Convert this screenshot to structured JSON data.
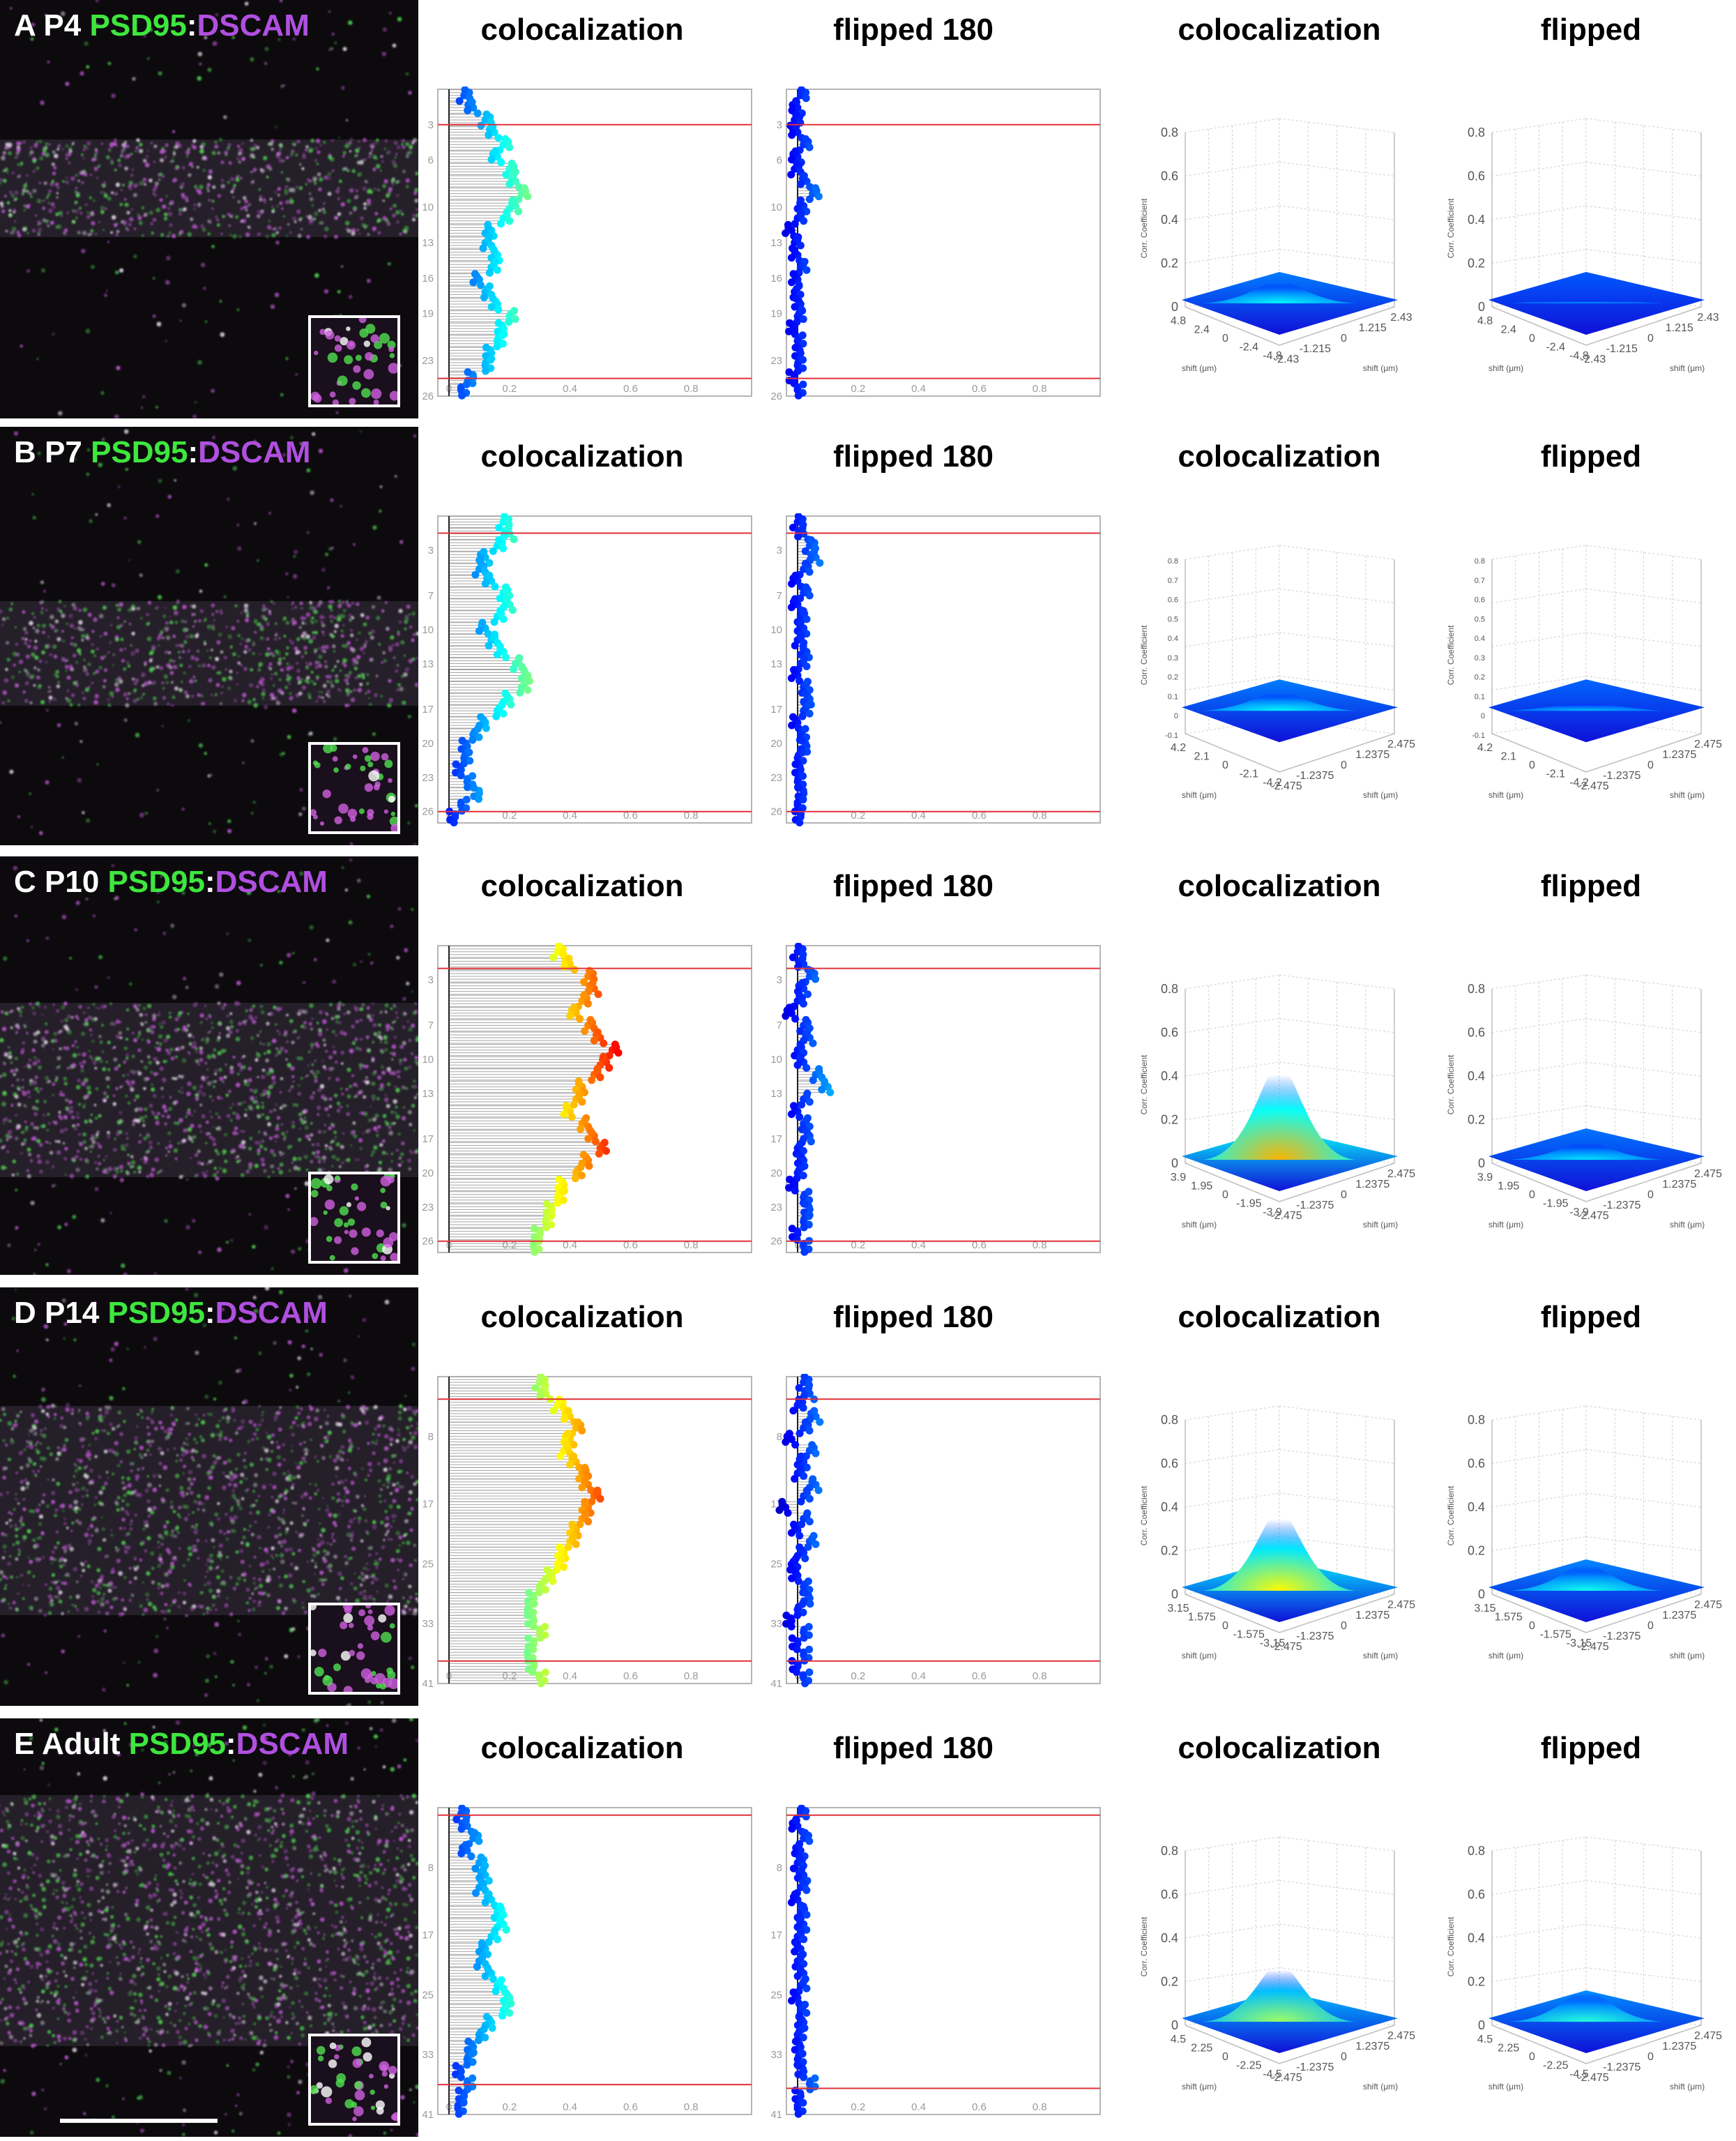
{
  "column_titles": [
    "colocalization",
    "flipped 180",
    "colocalization",
    "flipped"
  ],
  "colors": {
    "green": "#3ee63e",
    "magenta": "#b04fe0",
    "red_line": "#e0303a",
    "stem": "#9a9a9a"
  },
  "panels": [
    {
      "letter": "A",
      "age": "P4",
      "marker1": "PSD95",
      "sep": ":",
      "marker2": "DSCAM",
      "yticks": [
        "3",
        "6",
        "10",
        "13",
        "16",
        "19",
        "23",
        "26"
      ],
      "surf_z": [
        "0.8",
        "0.6",
        "0.4",
        "0.2",
        "0"
      ],
      "surf_z_label": "Corr. Coefficient",
      "surf_x": [
        "4.8",
        "2.4",
        "0",
        "-2.4",
        "-4.8"
      ],
      "surf_y": [
        "-2.43",
        "-1.215",
        "0",
        "1.215",
        "2.43"
      ],
      "surf_x_label": "shift (μm)",
      "surf_y_label": "shift (μm)"
    },
    {
      "letter": "B",
      "age": "P7",
      "marker1": "PSD95",
      "sep": ":",
      "marker2": "DSCAM",
      "yticks": [
        "3",
        "7",
        "10",
        "13",
        "17",
        "20",
        "23",
        "26"
      ],
      "surf_z": [
        "0.8",
        "0.7",
        "0.6",
        "0.5",
        "0.4",
        "0.3",
        "0.2",
        "0.1",
        "0",
        "-0.1"
      ],
      "surf_z_label": "Corr. Coefficient",
      "surf_x": [
        "4.2",
        "2.1",
        "0",
        "-2.1",
        "-4.2"
      ],
      "surf_y": [
        "-2.475",
        "-1.2375",
        "0",
        "1.2375",
        "2.475"
      ],
      "surf_x_label": "shift (μm)",
      "surf_y_label": "shift (μm)"
    },
    {
      "letter": "C",
      "age": "P10",
      "marker1": "PSD95",
      "sep": ":",
      "marker2": "DSCAM",
      "yticks": [
        "3",
        "7",
        "10",
        "13",
        "17",
        "20",
        "23",
        "26"
      ],
      "surf_z": [
        "0.8",
        "0.6",
        "0.4",
        "0.2",
        "0"
      ],
      "surf_z_label": "Corr. Coefficient",
      "surf_x": [
        "3.9",
        "1.95",
        "0",
        "-1.95",
        "-3.9"
      ],
      "surf_y": [
        "-2.475",
        "-1.2375",
        "0",
        "1.2375",
        "2.475"
      ],
      "surf_x_label": "shift (μm)",
      "surf_y_label": "shift (μm)"
    },
    {
      "letter": "D",
      "age": "P14",
      "marker1": "PSD95",
      "sep": ":",
      "marker2": "DSCAM",
      "yticks": [
        "8",
        "17",
        "25",
        "33",
        "41"
      ],
      "surf_z": [
        "0.8",
        "0.6",
        "0.4",
        "0.2",
        "0"
      ],
      "surf_z_label": "Corr. Coefficient",
      "surf_x": [
        "3.15",
        "1.575",
        "0",
        "-1.575",
        "-3.15"
      ],
      "surf_y": [
        "-2.475",
        "-1.2375",
        "0",
        "1.2375",
        "2.475"
      ],
      "surf_x_label": "shift (μm)",
      "surf_y_label": "shift (μm)"
    },
    {
      "letter": "E",
      "age": "Adult",
      "marker1": "PSD95",
      "sep": ":",
      "marker2": "DSCAM",
      "yticks": [
        "8",
        "17",
        "25",
        "33",
        "41"
      ],
      "surf_z": [
        "0.8",
        "0.6",
        "0.4",
        "0.2",
        "0"
      ],
      "surf_z_label": "Corr. Coefficient",
      "surf_x": [
        "4.5",
        "2.25",
        "0",
        "-2.25",
        "-4.5"
      ],
      "surf_y": [
        "-2.475",
        "-1.2375",
        "0",
        "1.2375",
        "2.475"
      ],
      "surf_x_label": "shift (μm)",
      "surf_y_label": "shift (μm)"
    }
  ],
  "chart_data": [
    {
      "type": "scatter",
      "panel": "A",
      "subtype": "lollipop",
      "title": "colocalization",
      "x_ticks": [
        "0",
        "0.2",
        "0.4",
        "0.6",
        "0.8"
      ],
      "xlim": [
        0,
        1.0
      ],
      "ylim": [
        0,
        26
      ],
      "threshold_rows": [
        3,
        24.5
      ],
      "values": [
        0.05,
        0.08,
        0.12,
        0.15,
        0.18,
        0.16,
        0.2,
        0.22,
        0.24,
        0.22,
        0.18,
        0.14,
        0.12,
        0.16,
        0.14,
        0.1,
        0.12,
        0.16,
        0.2,
        0.18,
        0.16,
        0.14,
        0.12,
        0.08,
        0.04
      ]
    },
    {
      "type": "scatter",
      "panel": "A",
      "subtype": "lollipop",
      "title": "flipped 180",
      "x_ticks": [
        "0",
        "0.2",
        "0.4",
        "0.6",
        "0.8"
      ],
      "xlim": [
        0,
        1.0
      ],
      "ylim": [
        0,
        26
      ],
      "threshold_rows": [
        3,
        24.5
      ],
      "values": [
        0.01,
        0.0,
        -0.01,
        0.0,
        0.02,
        0.0,
        -0.01,
        0.03,
        0.05,
        0.02,
        0.0,
        -0.02,
        -0.01,
        0.0,
        0.01,
        0.0,
        -0.01,
        0.01,
        0.0,
        -0.01,
        0.0,
        0.01,
        0.0,
        -0.01,
        0.0
      ]
    },
    {
      "type": "surface",
      "panel": "A",
      "title": "colocalization",
      "peak": 0.12,
      "zlim": [
        0,
        0.8
      ]
    },
    {
      "type": "surface",
      "panel": "A",
      "title": "flipped",
      "peak": 0.03,
      "zlim": [
        0,
        0.8
      ]
    },
    {
      "type": "scatter",
      "panel": "B",
      "subtype": "lollipop",
      "title": "colocalization",
      "x_ticks": [
        "0",
        "0.2",
        "0.4",
        "0.6",
        "0.8"
      ],
      "xlim": [
        0,
        1.0
      ],
      "ylim": [
        0,
        27
      ],
      "threshold_rows": [
        1.5,
        26
      ],
      "values": [
        0.18,
        0.2,
        0.16,
        0.12,
        0.1,
        0.14,
        0.18,
        0.2,
        0.16,
        0.12,
        0.14,
        0.18,
        0.22,
        0.26,
        0.24,
        0.2,
        0.16,
        0.12,
        0.08,
        0.06,
        0.05,
        0.04,
        0.06,
        0.1,
        0.04,
        0.02
      ]
    },
    {
      "type": "scatter",
      "panel": "B",
      "subtype": "lollipop",
      "title": "flipped 180",
      "x_ticks": [
        "0",
        "0.2",
        "0.4",
        "0.6",
        "0.8"
      ],
      "xlim": [
        0,
        1.0
      ],
      "ylim": [
        0,
        27
      ],
      "threshold_rows": [
        1.5,
        26
      ],
      "values": [
        0.0,
        0.02,
        0.04,
        0.06,
        0.02,
        0.0,
        0.02,
        0.0,
        0.01,
        0.02,
        0.0,
        0.03,
        0.01,
        0.0,
        0.02,
        0.04,
        0.02,
        0.0,
        0.01,
        0.03,
        0.0,
        0.01,
        0.0,
        0.02,
        0.0,
        0.01
      ]
    },
    {
      "type": "surface",
      "panel": "B",
      "title": "colocalization",
      "peak": 0.12,
      "zlim": [
        -0.1,
        0.8
      ]
    },
    {
      "type": "surface",
      "panel": "B",
      "title": "flipped",
      "peak": 0.06,
      "zlim": [
        -0.1,
        0.8
      ]
    },
    {
      "type": "scatter",
      "panel": "C",
      "subtype": "lollipop",
      "title": "colocalization",
      "x_ticks": [
        "0",
        "0.2",
        "0.4",
        "0.6",
        "0.8"
      ],
      "xlim": [
        0,
        1.0
      ],
      "ylim": [
        0,
        27
      ],
      "threshold_rows": [
        2,
        26
      ],
      "values": [
        0.36,
        0.4,
        0.46,
        0.48,
        0.44,
        0.42,
        0.46,
        0.5,
        0.54,
        0.52,
        0.48,
        0.44,
        0.42,
        0.4,
        0.44,
        0.48,
        0.5,
        0.46,
        0.42,
        0.38,
        0.36,
        0.34,
        0.32,
        0.3,
        0.28
      ]
    },
    {
      "type": "scatter",
      "panel": "C",
      "subtype": "lollipop",
      "title": "flipped 180",
      "x_ticks": [
        "0",
        "0.2",
        "0.4",
        "0.6",
        "0.8"
      ],
      "xlim": [
        0,
        1.0
      ],
      "ylim": [
        0,
        27
      ],
      "threshold_rows": [
        2,
        26
      ],
      "values": [
        0.0,
        0.02,
        0.04,
        0.02,
        0.0,
        -0.02,
        0.02,
        0.04,
        0.0,
        0.02,
        0.06,
        0.1,
        0.02,
        0.0,
        0.02,
        0.04,
        0.0,
        0.02,
        0.0,
        -0.01,
        0.02,
        0.04,
        0.02,
        0.0,
        0.02
      ]
    },
    {
      "type": "surface",
      "panel": "C",
      "title": "colocalization",
      "peak": 0.45,
      "zlim": [
        0,
        0.8
      ]
    },
    {
      "type": "surface",
      "panel": "C",
      "title": "flipped",
      "peak": 0.1,
      "zlim": [
        0,
        0.8
      ]
    },
    {
      "type": "scatter",
      "panel": "D",
      "subtype": "lollipop",
      "title": "colocalization",
      "x_ticks": [
        "0",
        "0.2",
        "0.4",
        "0.6",
        "0.8"
      ],
      "xlim": [
        0,
        1.0
      ],
      "ylim": [
        0,
        41
      ],
      "threshold_rows": [
        3,
        38
      ],
      "values": [
        0.3,
        0.32,
        0.36,
        0.4,
        0.42,
        0.4,
        0.38,
        0.42,
        0.44,
        0.46,
        0.48,
        0.46,
        0.44,
        0.42,
        0.4,
        0.38,
        0.36,
        0.34,
        0.3,
        0.28,
        0.26,
        0.28,
        0.3,
        0.28,
        0.26,
        0.28,
        0.3
      ]
    },
    {
      "type": "scatter",
      "panel": "D",
      "subtype": "lollipop",
      "title": "flipped 180",
      "x_ticks": [
        "0",
        "0.2",
        "0.4",
        "0.6",
        "0.8"
      ],
      "xlim": [
        0,
        1.0
      ],
      "ylim": [
        0,
        41
      ],
      "threshold_rows": [
        3,
        38
      ],
      "values": [
        0.02,
        0.04,
        0.0,
        0.06,
        0.02,
        -0.02,
        0.04,
        0.02,
        0.0,
        0.06,
        0.02,
        -0.04,
        0.02,
        0.0,
        0.04,
        0.02,
        -0.02,
        0.0,
        0.02,
        0.04,
        0.0,
        -0.02,
        0.02,
        0.0,
        0.02,
        0.0,
        0.02
      ]
    },
    {
      "type": "surface",
      "panel": "D",
      "title": "colocalization",
      "peak": 0.38,
      "zlim": [
        0,
        0.8
      ]
    },
    {
      "type": "surface",
      "panel": "D",
      "title": "flipped",
      "peak": 0.14,
      "zlim": [
        0,
        0.8
      ]
    },
    {
      "type": "scatter",
      "panel": "E",
      "subtype": "lollipop",
      "title": "colocalization",
      "x_ticks": [
        "0",
        "0.2",
        "0.4",
        "0.6",
        "0.8"
      ],
      "xlim": [
        0,
        1.0
      ],
      "ylim": [
        0,
        41
      ],
      "threshold_rows": [
        1,
        37
      ],
      "values": [
        0.04,
        0.06,
        0.08,
        0.06,
        0.1,
        0.12,
        0.1,
        0.14,
        0.16,
        0.18,
        0.14,
        0.12,
        0.1,
        0.14,
        0.16,
        0.2,
        0.18,
        0.14,
        0.1,
        0.08,
        0.06,
        0.04,
        0.06,
        0.05,
        0.03
      ]
    },
    {
      "type": "scatter",
      "panel": "E",
      "subtype": "lollipop",
      "title": "flipped 180",
      "x_ticks": [
        "0",
        "0.2",
        "0.4",
        "0.6",
        "0.8"
      ],
      "xlim": [
        0,
        1.0
      ],
      "ylim": [
        0,
        41
      ],
      "threshold_rows": [
        1,
        37.5
      ],
      "values": [
        0.01,
        0.0,
        0.02,
        0.01,
        0.0,
        0.02,
        0.01,
        0.0,
        0.01,
        0.02,
        0.0,
        0.01,
        0.0,
        0.02,
        0.01,
        0.0,
        0.01,
        0.02,
        0.0,
        0.01,
        0.0,
        0.02,
        0.04,
        0.01,
        0.0
      ]
    },
    {
      "type": "surface",
      "panel": "E",
      "title": "colocalization",
      "peak": 0.28,
      "zlim": [
        0,
        0.8
      ]
    },
    {
      "type": "surface",
      "panel": "E",
      "title": "flipped",
      "peak": 0.16,
      "zlim": [
        0,
        0.8
      ]
    }
  ]
}
